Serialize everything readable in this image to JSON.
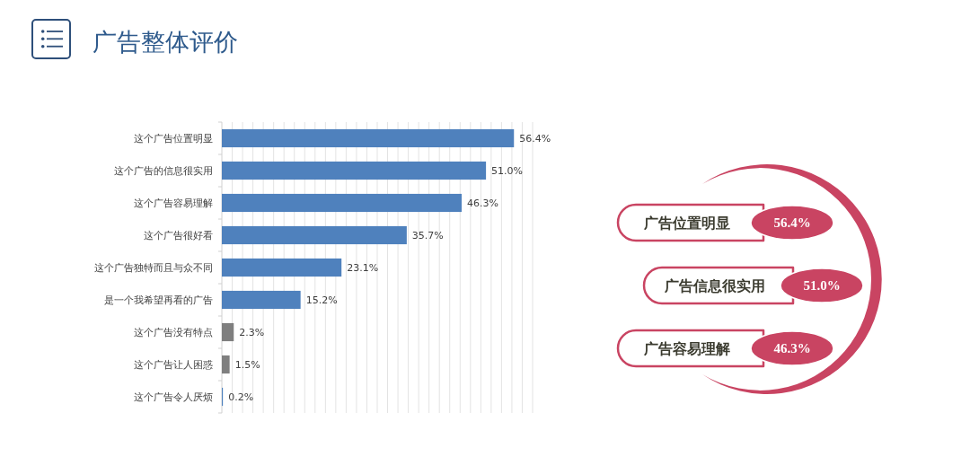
{
  "chart_data": [
    {
      "type": "bar",
      "orientation": "horizontal",
      "title": "广告整体评价",
      "categories": [
        "这个广告位置明显",
        "这个广告的信息很实用",
        "这个广告容易理解",
        "这个广告很好看",
        "这个广告独特而且与众不同",
        "是一个我希望再看的广告",
        "这个广告没有特点",
        "这个广告让人困惑",
        "这个广告令人厌烦"
      ],
      "values": [
        56.4,
        51.0,
        46.3,
        35.7,
        23.1,
        15.2,
        2.3,
        1.5,
        0.2
      ],
      "colors": [
        "#4f81bd",
        "#4f81bd",
        "#4f81bd",
        "#4f81bd",
        "#4f81bd",
        "#4f81bd",
        "#7f7f7f",
        "#7f7f7f",
        "#4f81bd"
      ],
      "value_labels": [
        "56.4%",
        "51.0%",
        "46.3%",
        "35.7%",
        "23.1%",
        "15.2%",
        "2.3%",
        "1.5%",
        "0.2%"
      ],
      "xlim": [
        0,
        60
      ],
      "xticks": [
        {
          "value": 2,
          "label": null
        },
        {
          "value": 4,
          "label": null
        },
        {
          "value": 6,
          "label": null
        },
        {
          "value": 8,
          "label": null
        },
        {
          "value": 10,
          "label": null
        },
        {
          "value": 12,
          "label": null
        },
        {
          "value": 14,
          "label": null
        },
        {
          "value": 16,
          "label": null
        },
        {
          "value": 18,
          "label": null
        },
        {
          "value": 20,
          "label": null
        },
        {
          "value": 22,
          "label": null
        },
        {
          "value": 24,
          "label": null
        },
        {
          "value": 26,
          "label": null
        },
        {
          "value": 28,
          "label": null
        },
        {
          "value": 30,
          "label": null
        },
        {
          "value": 32,
          "label": null
        },
        {
          "value": 34,
          "label": null
        },
        {
          "value": 36,
          "label": null
        },
        {
          "value": 38,
          "label": null
        },
        {
          "value": 40,
          "label": null
        },
        {
          "value": 42,
          "label": null
        },
        {
          "value": 44,
          "label": null
        },
        {
          "value": 46,
          "label": null
        },
        {
          "value": 48,
          "label": null
        },
        {
          "value": 50,
          "label": null
        },
        {
          "value": 52,
          "label": null
        },
        {
          "value": 54,
          "label": null
        },
        {
          "value": 56,
          "label": null
        },
        {
          "value": 58,
          "label": null
        },
        {
          "value": 60,
          "label": null
        }
      ],
      "grid": "x",
      "tick_labels": "y"
    },
    {
      "type": "other",
      "categories": [
        "广告位置明显",
        "广告信息很实用",
        "广告容易理解"
      ],
      "values": [
        56.4,
        51.0,
        46.3
      ],
      "value_labels": [
        "56.4%",
        "51.0%",
        "46.3%"
      ],
      "color": "#c94462"
    }
  ]
}
